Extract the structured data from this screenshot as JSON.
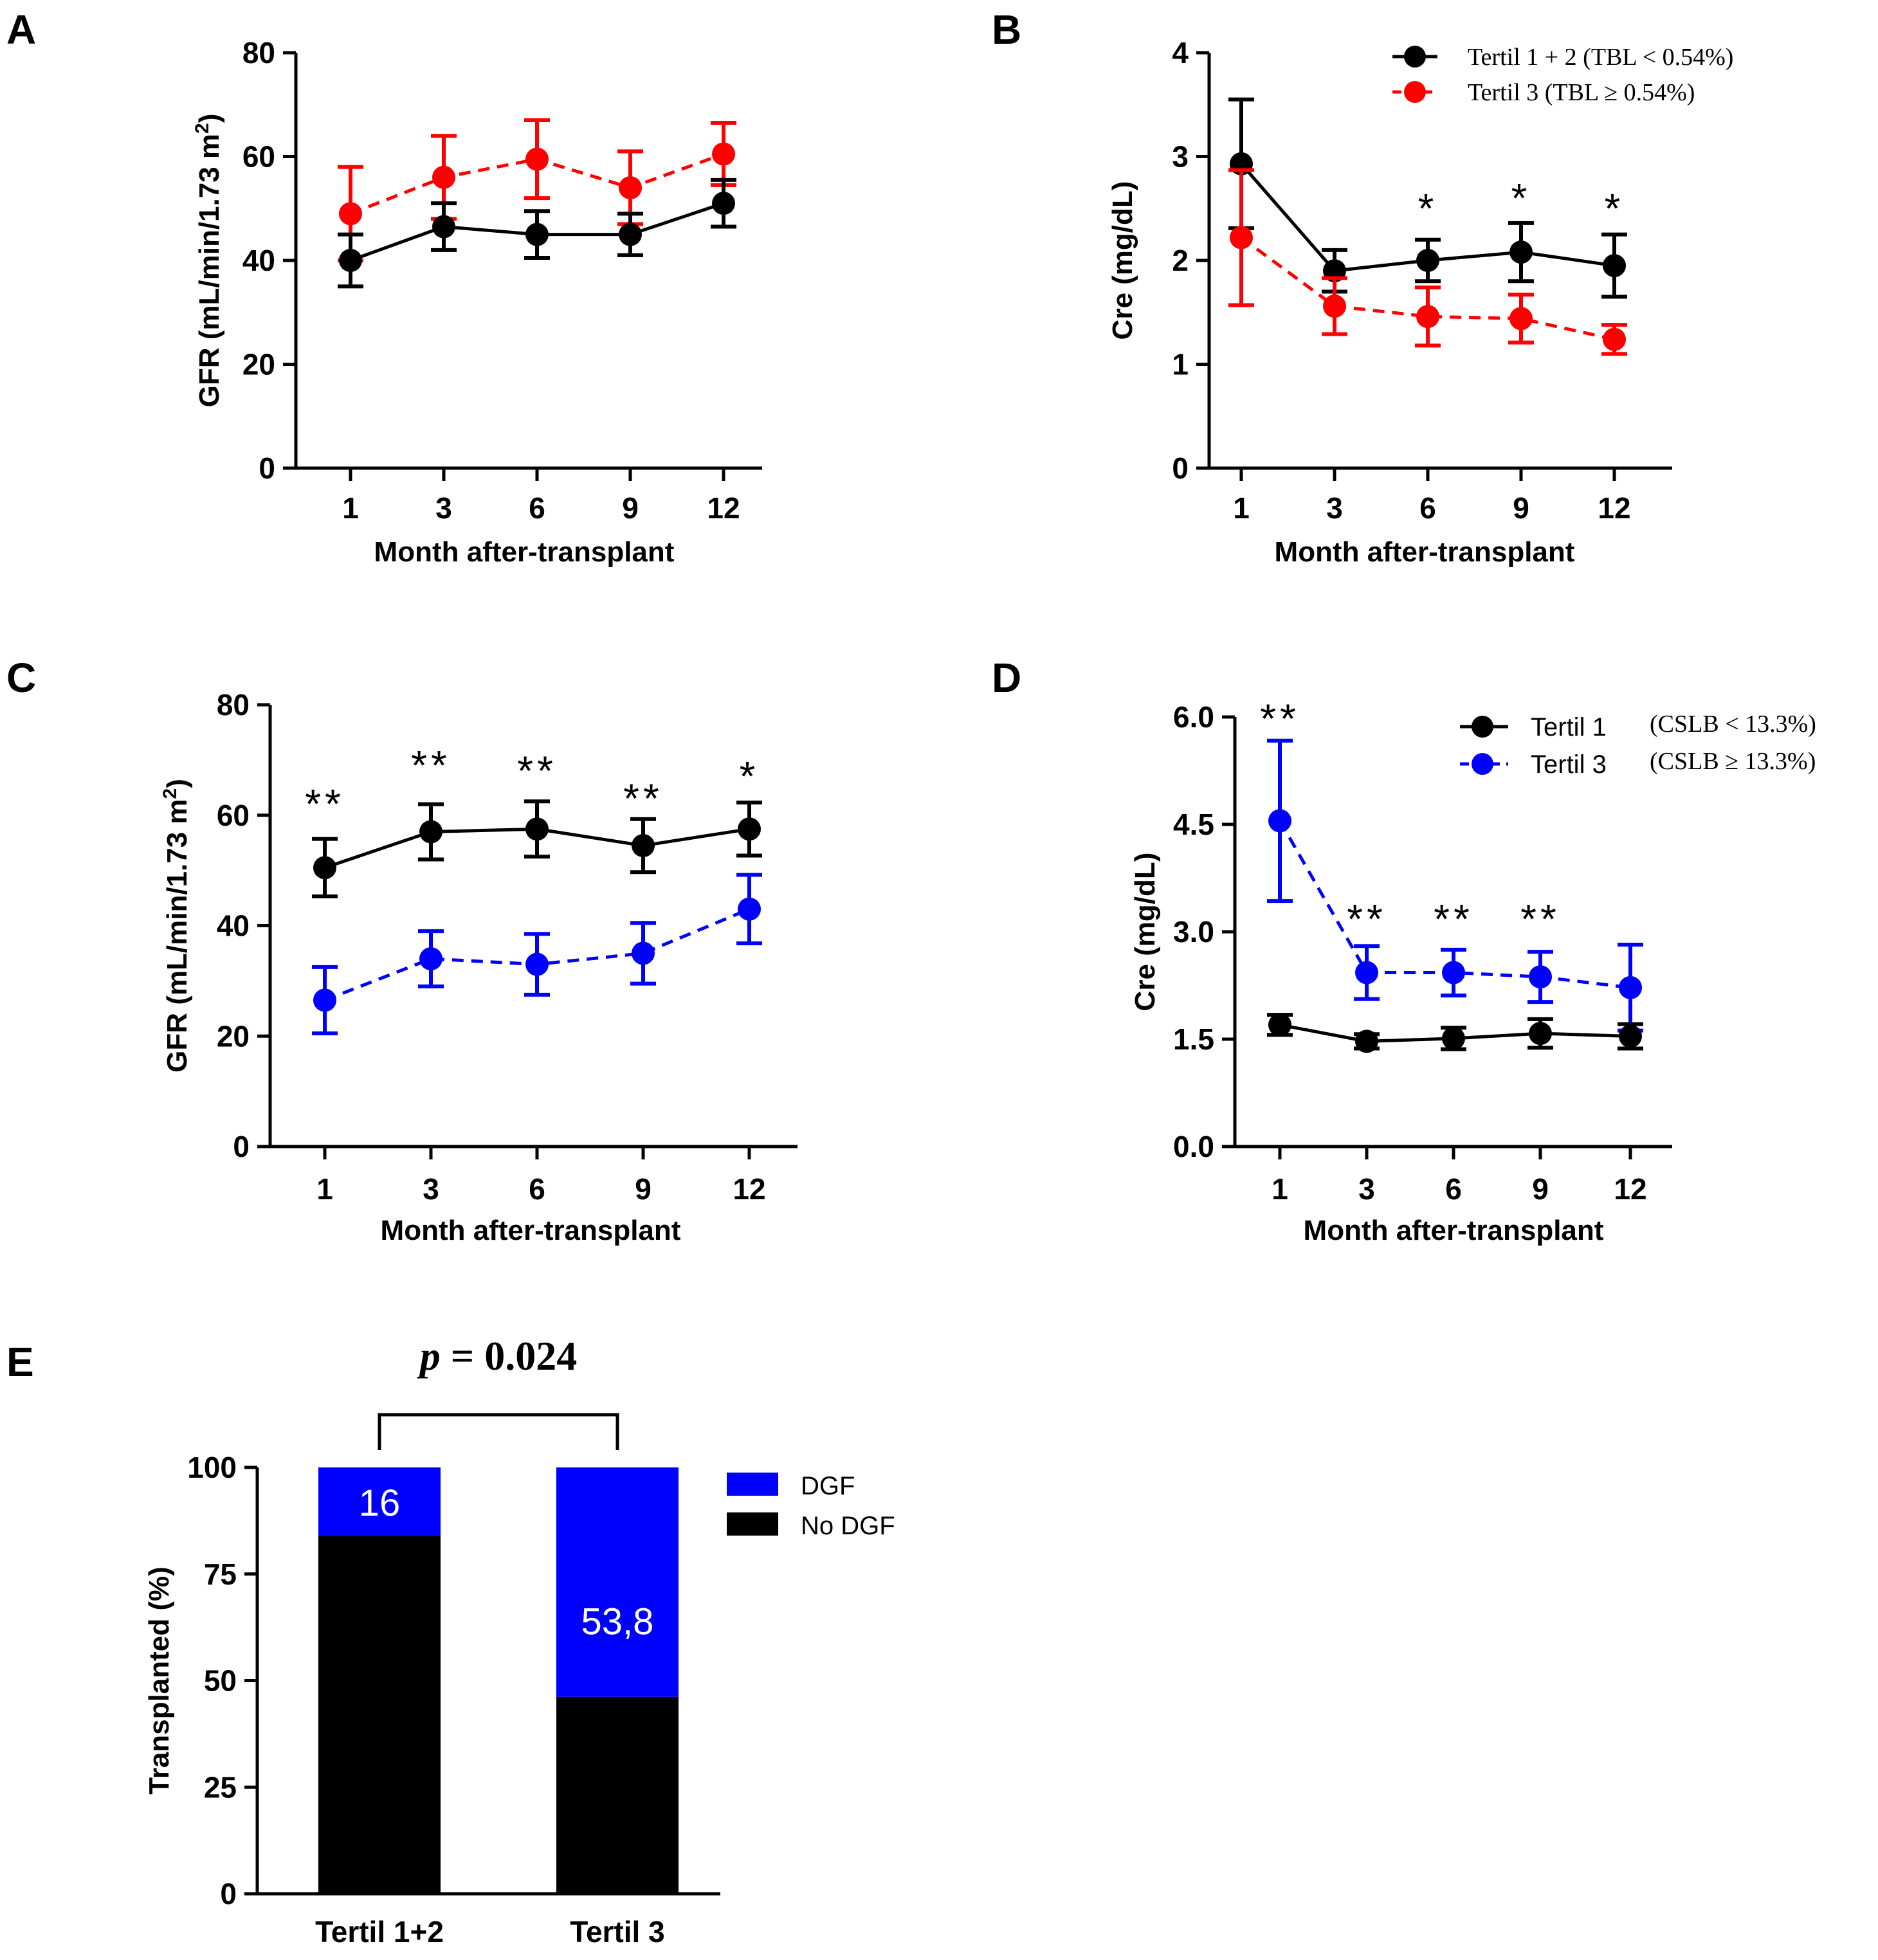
{
  "chart_data": [
    {
      "panel": "A",
      "type": "line",
      "xlabel": "Month after-transplant",
      "ylabel": "GFR (mL/min/1.73 m²)",
      "categories": [
        "1",
        "3",
        "6",
        "9",
        "12"
      ],
      "ylim": [
        0,
        80
      ],
      "yticks": [
        "0",
        "20",
        "40",
        "60",
        "80"
      ],
      "series": [
        {
          "name": "Tertil 1 + 2",
          "color": "#000000",
          "dashed": false,
          "values": [
            40,
            46.5,
            45,
            45,
            51
          ],
          "errors": [
            5,
            4.5,
            4.5,
            4,
            4.5
          ]
        },
        {
          "name": "Tertil 3",
          "color": "#ff0000",
          "dashed": true,
          "values": [
            49,
            56,
            59.5,
            54,
            60.5
          ],
          "errors": [
            9,
            8,
            7.5,
            7,
            6
          ]
        }
      ],
      "annotations": []
    },
    {
      "panel": "B",
      "type": "line",
      "xlabel": "Month after-transplant",
      "ylabel": "Cre (mg/dL)",
      "categories": [
        "1",
        "3",
        "6",
        "9",
        "12"
      ],
      "ylim": [
        0,
        4
      ],
      "yticks": [
        "0",
        "1",
        "2",
        "3",
        "4"
      ],
      "legend": [
        {
          "label": "Tertil 1 + 2 (TBL < 0.54%)",
          "color": "#000000",
          "dashed": false
        },
        {
          "label": "Tertil 3 (TBL ≥ 0.54%)",
          "color": "#ff0000",
          "dashed": true
        }
      ],
      "series": [
        {
          "name": "Tertil 1 + 2",
          "color": "#000000",
          "dashed": false,
          "values": [
            2.93,
            1.9,
            2.0,
            2.08,
            1.95
          ],
          "errors": [
            0.62,
            0.2,
            0.2,
            0.28,
            0.3
          ]
        },
        {
          "name": "Tertil 3",
          "color": "#ff0000",
          "dashed": true,
          "values": [
            2.22,
            1.56,
            1.46,
            1.44,
            1.24
          ],
          "errors": [
            0.65,
            0.27,
            0.28,
            0.23,
            0.14
          ]
        }
      ],
      "annotations": [
        {
          "x": "6",
          "text": "*",
          "y": 2.55
        },
        {
          "x": "9",
          "text": "*",
          "y": 2.65
        },
        {
          "x": "12",
          "text": "*",
          "y": 2.55
        }
      ]
    },
    {
      "panel": "C",
      "type": "line",
      "xlabel": "Month after-transplant",
      "ylabel": "GFR (mL/min/1.73 m²)",
      "categories": [
        "1",
        "3",
        "6",
        "9",
        "12"
      ],
      "ylim": [
        0,
        80
      ],
      "yticks": [
        "0",
        "20",
        "40",
        "60",
        "80"
      ],
      "series": [
        {
          "name": "Tertil 1",
          "color": "#000000",
          "dashed": false,
          "values": [
            50.5,
            57,
            57.5,
            54.5,
            57.5
          ],
          "errors": [
            5.2,
            5,
            5,
            4.8,
            4.8
          ]
        },
        {
          "name": "Tertil 3",
          "color": "#0000ff",
          "dashed": true,
          "values": [
            26.5,
            34,
            33,
            35,
            43
          ],
          "errors": [
            6,
            5,
            5.5,
            5.5,
            6.2
          ]
        }
      ],
      "annotations": [
        {
          "x": "1",
          "text": "**",
          "y": 63
        },
        {
          "x": "3",
          "text": "**",
          "y": 70
        },
        {
          "x": "6",
          "text": "**",
          "y": 69
        },
        {
          "x": "9",
          "text": "**",
          "y": 64
        },
        {
          "x": "12",
          "text": "*",
          "y": 68
        }
      ]
    },
    {
      "panel": "D",
      "type": "line",
      "xlabel": "Month after-transplant",
      "ylabel": "Cre (mg/dL)",
      "categories": [
        "1",
        "3",
        "6",
        "9",
        "12"
      ],
      "ylim": [
        0,
        6
      ],
      "yticks": [
        "0.0",
        "1.5",
        "3.0",
        "4.5",
        "6.0"
      ],
      "legend": [
        {
          "label": "Tertil 1",
          "extra": "(CSLB < 13.3%)",
          "color": "#000000",
          "dashed": false
        },
        {
          "label": "Tertil 3",
          "extra": "(CSLB ≥ 13.3%)",
          "color": "#0000ff",
          "dashed": true
        }
      ],
      "series": [
        {
          "name": "Tertil 1",
          "color": "#000000",
          "dashed": false,
          "values": [
            1.7,
            1.47,
            1.51,
            1.58,
            1.54
          ],
          "errors": [
            0.14,
            0.1,
            0.15,
            0.2,
            0.17
          ]
        },
        {
          "name": "Tertil 3",
          "color": "#0000ff",
          "dashed": true,
          "values": [
            4.55,
            2.43,
            2.43,
            2.37,
            2.22
          ],
          "errors": [
            1.12,
            0.37,
            0.32,
            0.35,
            0.6
          ]
        }
      ],
      "annotations": [
        {
          "x": "1",
          "text": "**",
          "y": 6.05
        },
        {
          "x": "3",
          "text": "**",
          "y": 3.25
        },
        {
          "x": "6",
          "text": "**",
          "y": 3.25
        },
        {
          "x": "9",
          "text": "**",
          "y": 3.25
        }
      ]
    },
    {
      "panel": "E",
      "type": "bar",
      "stacked": true,
      "ylabel": "Transplanted (%)",
      "xlabel": "",
      "categories": [
        "Tertil 1+2",
        "Tertil 3"
      ],
      "ylim": [
        0,
        100
      ],
      "yticks": [
        "0",
        "25",
        "50",
        "75",
        "100"
      ],
      "series": [
        {
          "name": "No DGF",
          "color": "#000000",
          "values": [
            84,
            46.2
          ]
        },
        {
          "name": "DGF",
          "color": "#0000ff",
          "values": [
            16,
            53.8
          ]
        }
      ],
      "bar_labels": [
        "16",
        "53,8"
      ],
      "legend": [
        {
          "label": "DGF",
          "color": "#0000ff"
        },
        {
          "label": "No DGF",
          "color": "#000000"
        }
      ],
      "pvalue": {
        "symbol": "p",
        "eq": " = ",
        "value": "0.024"
      }
    }
  ]
}
